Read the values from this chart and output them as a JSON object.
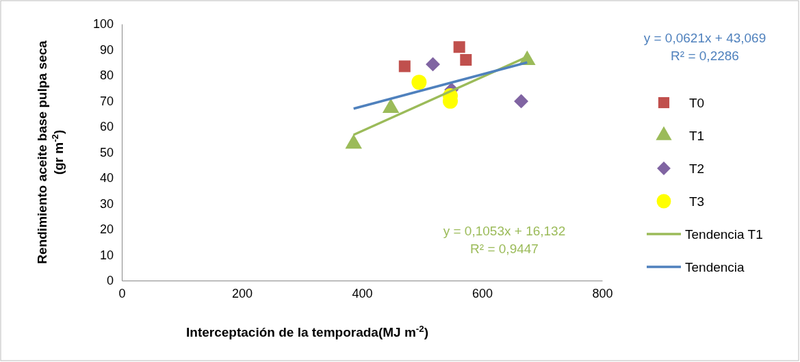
{
  "chart_data": {
    "type": "scatter",
    "xlabel": "Interceptación de la temporada(MJ m$^{-2}$)",
    "ylabel": "Rendimiento aceite base pulpa seca (gr m$^{-2}$)",
    "xlim": [
      0,
      800
    ],
    "xticks": [
      0,
      200,
      400,
      600,
      800
    ],
    "ylim": [
      0,
      100
    ],
    "yticks": [
      0,
      10,
      20,
      30,
      40,
      50,
      60,
      70,
      80,
      90,
      100
    ],
    "legend": "right",
    "grid": false,
    "series": [
      {
        "name": "T0",
        "marker": "square",
        "color": "#c0504d",
        "x": [
          471,
          562,
          573
        ],
        "values": [
          83.5,
          91,
          86
        ]
      },
      {
        "name": "T1",
        "marker": "triangle",
        "color": "#9bbb59",
        "x": [
          386,
          448,
          548,
          675
        ],
        "values": [
          53.3,
          67.2,
          null,
          85.9
        ]
      },
      {
        "name": "T2",
        "marker": "diamond",
        "color": "#8064a2",
        "x": [
          518,
          549,
          665
        ],
        "values": [
          84.3,
          74.4,
          69.9
        ]
      },
      {
        "name": "T3",
        "marker": "circle",
        "color": "#ffff00",
        "x": [
          495,
          547,
          547
        ],
        "values": [
          77.3,
          72,
          69.9
        ]
      },
      {
        "name": "Tendencia T1",
        "type": "line",
        "color": "#9bbb59",
        "x": [
          386,
          675
        ],
        "values": [
          56.8,
          87.2
        ]
      },
      {
        "name": "Tendencia",
        "type": "line",
        "color": "#4f81bd",
        "x": [
          386,
          675
        ],
        "values": [
          67,
          85
        ]
      }
    ],
    "annotations": [
      "y = 0,0621x + 43,069\nR² = 0,2286",
      "y = 0,1053x + 16,132\nR² = 0,9447"
    ]
  }
}
